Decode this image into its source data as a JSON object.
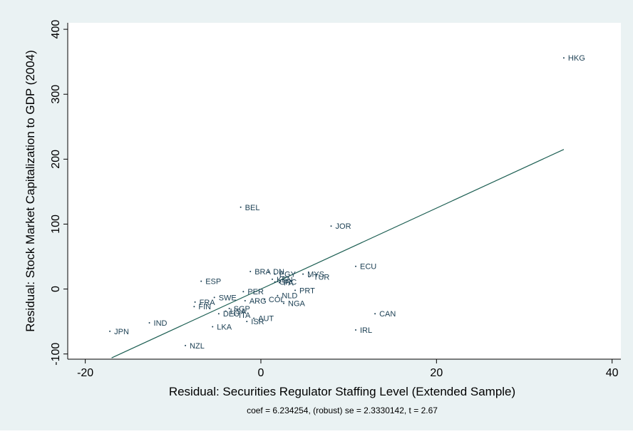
{
  "chart_data": {
    "type": "scatter",
    "xlabel": "Residual: Securities Regulator Staffing Level (Extended Sample)",
    "ylabel": "Residual: Stock Market Capitalization to GDP (2004)",
    "note": "coef = 6.234254, (robust) se = 2.3330142, t = 2.67",
    "xlim": [
      -22,
      41
    ],
    "ylim": [
      -108,
      410
    ],
    "xticks": [
      -20,
      0,
      20,
      40
    ],
    "yticks": [
      -100,
      0,
      100,
      200,
      300,
      400
    ],
    "xtick_labels": [
      "-20",
      "0",
      "20",
      "40"
    ],
    "ytick_labels": [
      "-100",
      "0",
      "100",
      "200",
      "300",
      "400"
    ],
    "grid": false,
    "fit_line": {
      "x": [
        -17.0,
        34.5
      ],
      "y": [
        -106,
        215
      ]
    },
    "points": [
      {
        "label": "HKG",
        "x": 34.5,
        "y": 356
      },
      {
        "label": "BEL",
        "x": -2.3,
        "y": 126
      },
      {
        "label": "JOR",
        "x": 8.0,
        "y": 97
      },
      {
        "label": "ECU",
        "x": 10.8,
        "y": 35
      },
      {
        "label": "BRA",
        "x": -1.2,
        "y": 27
      },
      {
        "label": "DN",
        "x": 0.9,
        "y": 27
      },
      {
        "label": "EGY",
        "x": 1.6,
        "y": 23
      },
      {
        "label": "MYS",
        "x": 4.8,
        "y": 23
      },
      {
        "label": "TUR",
        "x": 5.5,
        "y": 19
      },
      {
        "label": "KEN",
        "x": 1.3,
        "y": 15
      },
      {
        "label": "ESP",
        "x": -6.8,
        "y": 12
      },
      {
        "label": "GRC",
        "x": 1.6,
        "y": 11
      },
      {
        "label": "PA",
        "x": 2.1,
        "y": 10
      },
      {
        "label": "PRT",
        "x": 3.9,
        "y": -2
      },
      {
        "label": "PER",
        "x": -2.0,
        "y": -4
      },
      {
        "label": "NLD",
        "x": 1.9,
        "y": -10
      },
      {
        "label": "SWE",
        "x": -5.3,
        "y": -13
      },
      {
        "label": "COL",
        "x": 0.4,
        "y": -16
      },
      {
        "label": "ARG",
        "x": -1.8,
        "y": -18
      },
      {
        "label": "NGA",
        "x": 2.6,
        "y": -22
      },
      {
        "label": "FRA",
        "x": -7.5,
        "y": -20
      },
      {
        "label": "FIN",
        "x": -7.6,
        "y": -27
      },
      {
        "label": "SGP",
        "x": -3.6,
        "y": -30
      },
      {
        "label": "USA",
        "x": -4.0,
        "y": -34
      },
      {
        "label": "DEU",
        "x": -4.8,
        "y": -38
      },
      {
        "label": "ITA",
        "x": -3.0,
        "y": -40
      },
      {
        "label": "CAN",
        "x": 13.0,
        "y": -38
      },
      {
        "label": "AUT",
        "x": -0.8,
        "y": -45
      },
      {
        "label": "ISR",
        "x": -1.6,
        "y": -50
      },
      {
        "label": "IND",
        "x": -12.7,
        "y": -52
      },
      {
        "label": "LKA",
        "x": -5.5,
        "y": -58
      },
      {
        "label": "IRL",
        "x": 10.8,
        "y": -63
      },
      {
        "label": "JPN",
        "x": -17.2,
        "y": -65
      },
      {
        "label": "NZL",
        "x": -8.6,
        "y": -87
      }
    ]
  }
}
